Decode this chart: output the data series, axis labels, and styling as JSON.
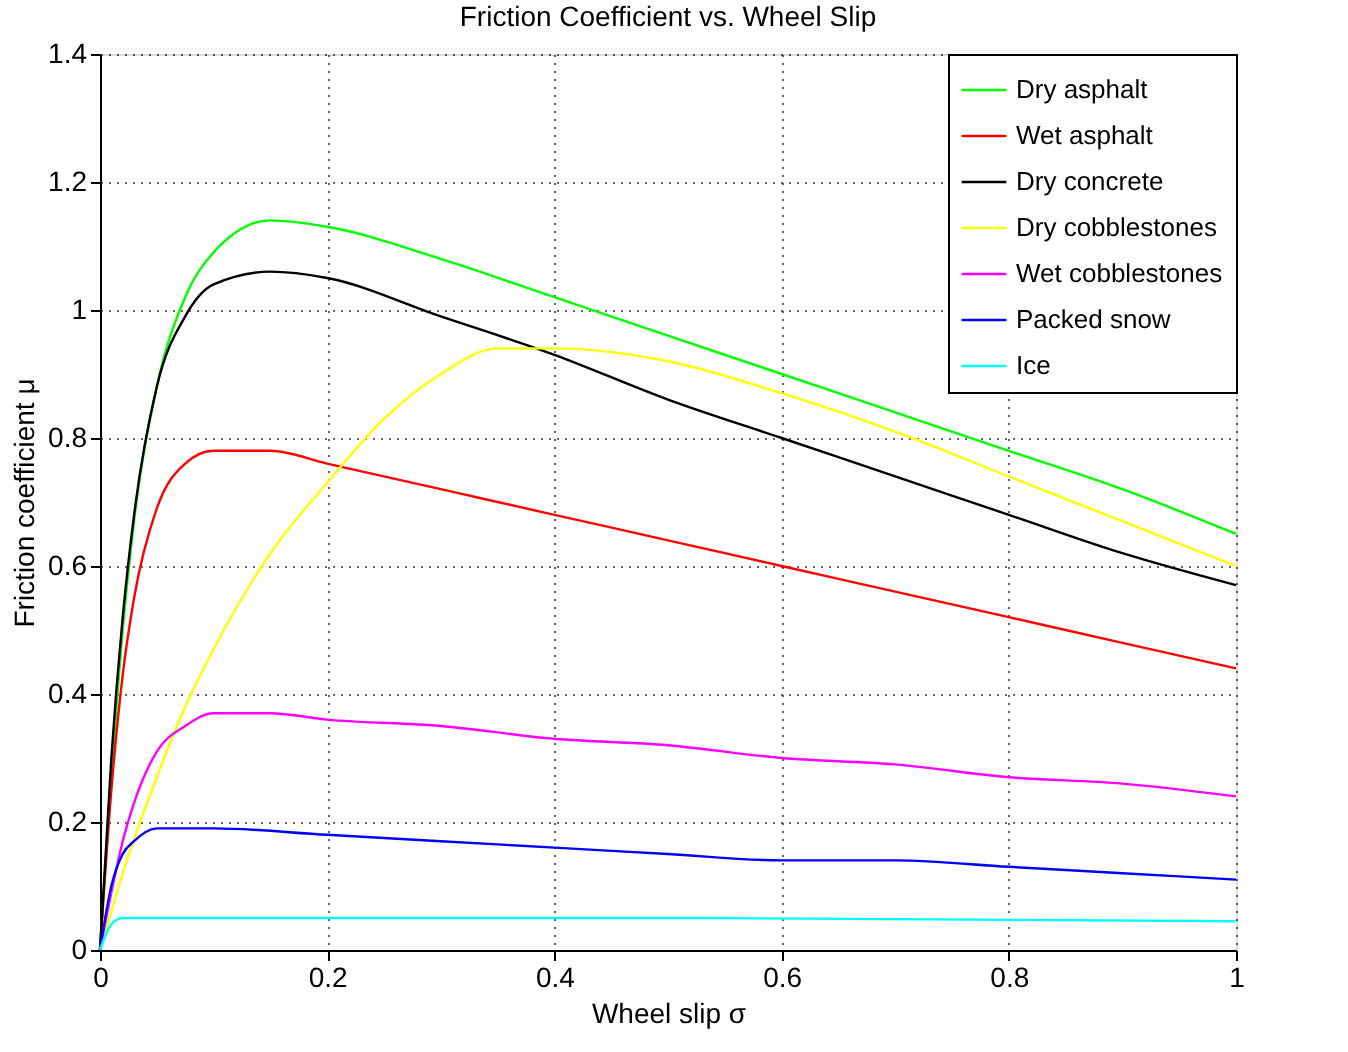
{
  "chart_data": {
    "type": "line",
    "title": "Friction Coefficient vs. Wheel Slip",
    "xlabel": "Wheel slip σ",
    "ylabel": "Friction coefficient μ",
    "xlim": [
      0,
      1
    ],
    "ylim": [
      0,
      1.4
    ],
    "xticks": [
      0,
      0.2,
      0.4,
      0.6,
      0.8,
      1
    ],
    "yticks": [
      0,
      0.2,
      0.4,
      0.6,
      0.8,
      1,
      1.2,
      1.4
    ],
    "grid": true,
    "legend": "top right",
    "series": [
      {
        "name": "Dry asphalt",
        "color": "#00ff00",
        "x": [
          0,
          0.02,
          0.03,
          0.05,
          0.075,
          0.1,
          0.15,
          0.2,
          0.3,
          0.4,
          0.5,
          0.6,
          0.7,
          0.8,
          0.9,
          1
        ],
        "values": [
          0,
          0.5,
          0.67,
          0.88,
          1.02,
          1.09,
          1.14,
          1.13,
          1.08,
          1.02,
          0.96,
          0.9,
          0.84,
          0.78,
          0.72,
          0.65
        ]
      },
      {
        "name": "Wet asphalt",
        "color": "#ff0000",
        "x": [
          0,
          0.01,
          0.02,
          0.03,
          0.05,
          0.075,
          0.1,
          0.15,
          0.2,
          0.3,
          0.4,
          0.5,
          0.6,
          0.7,
          0.8,
          0.9,
          1
        ],
        "values": [
          0,
          0.25,
          0.43,
          0.55,
          0.69,
          0.76,
          0.78,
          0.78,
          0.76,
          0.72,
          0.68,
          0.64,
          0.6,
          0.56,
          0.52,
          0.48,
          0.44
        ]
      },
      {
        "name": "Dry concrete",
        "color": "#000000",
        "x": [
          0,
          0.01,
          0.02,
          0.03,
          0.05,
          0.075,
          0.1,
          0.15,
          0.2,
          0.3,
          0.4,
          0.5,
          0.6,
          0.7,
          0.8,
          0.9,
          1
        ],
        "values": [
          0,
          0.3,
          0.52,
          0.68,
          0.88,
          0.99,
          1.04,
          1.06,
          1.05,
          0.99,
          0.93,
          0.86,
          0.8,
          0.74,
          0.68,
          0.62,
          0.57
        ]
      },
      {
        "name": "Dry cobblestones",
        "color": "#ffff00",
        "x": [
          0,
          0.01,
          0.02,
          0.05,
          0.075,
          0.1,
          0.15,
          0.2,
          0.25,
          0.3,
          0.35,
          0.4,
          0.5,
          0.6,
          0.7,
          0.8,
          0.9,
          1
        ],
        "values": [
          0,
          0.06,
          0.12,
          0.27,
          0.38,
          0.47,
          0.62,
          0.73,
          0.83,
          0.9,
          0.94,
          0.94,
          0.92,
          0.87,
          0.81,
          0.74,
          0.67,
          0.6
        ]
      },
      {
        "name": "Wet cobblestones",
        "color": "#ff00ff",
        "x": [
          0,
          0.01,
          0.02,
          0.03,
          0.05,
          0.075,
          0.1,
          0.15,
          0.2,
          0.3,
          0.4,
          0.5,
          0.6,
          0.7,
          0.8,
          0.9,
          1
        ],
        "values": [
          0,
          0.09,
          0.17,
          0.23,
          0.31,
          0.35,
          0.37,
          0.37,
          0.36,
          0.35,
          0.33,
          0.32,
          0.3,
          0.29,
          0.27,
          0.26,
          0.24
        ]
      },
      {
        "name": "Packed snow",
        "color": "#0000ff",
        "x": [
          0,
          0.01,
          0.02,
          0.03,
          0.05,
          0.1,
          0.2,
          0.3,
          0.4,
          0.5,
          0.6,
          0.7,
          0.8,
          0.9,
          1
        ],
        "values": [
          0,
          0.1,
          0.15,
          0.17,
          0.19,
          0.19,
          0.18,
          0.17,
          0.16,
          0.15,
          0.14,
          0.14,
          0.13,
          0.12,
          0.11
        ]
      },
      {
        "name": "Ice",
        "color": "#00ffff",
        "x": [
          0,
          0.01,
          0.02,
          0.05,
          0.2,
          0.5,
          1
        ],
        "values": [
          0,
          0.04,
          0.05,
          0.05,
          0.05,
          0.05,
          0.045
        ]
      }
    ]
  }
}
